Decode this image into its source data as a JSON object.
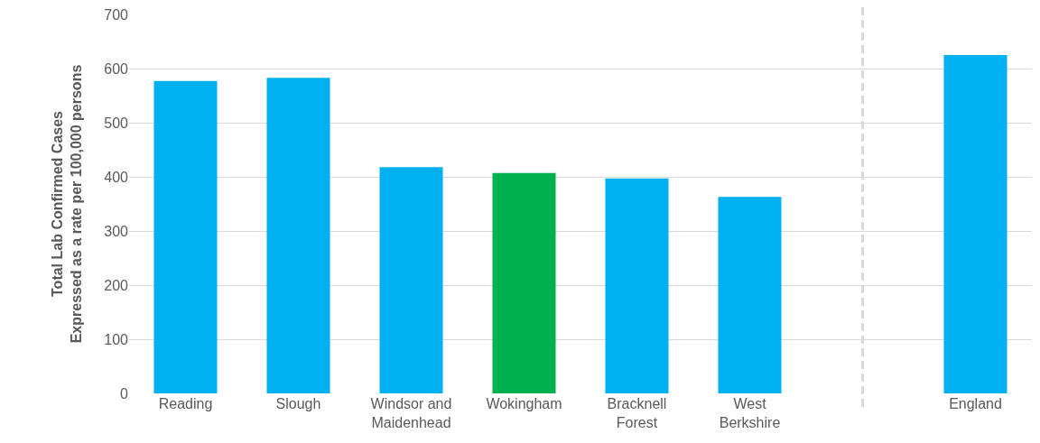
{
  "chart_data": {
    "type": "bar",
    "ylabel": "Total Lab Confirmed Cases\nExpressed as a rate per 100,000 persons",
    "categories": [
      "Reading",
      "Slough",
      "Windsor and Maidenhead",
      "Wokingham",
      "Bracknell Forest",
      "West Berkshire",
      null,
      "England"
    ],
    "values": [
      577,
      583,
      418,
      407,
      397,
      363,
      null,
      625
    ],
    "colors": [
      "#00b0f0",
      "#00b0f0",
      "#00b0f0",
      "#00b050",
      "#00b0f0",
      "#00b0f0",
      "#00b0f0",
      "#00b0f0"
    ],
    "ylim": [
      0,
      700
    ],
    "yticks": [
      0,
      100,
      200,
      300,
      400,
      500,
      600,
      700
    ],
    "grid": "y"
  }
}
